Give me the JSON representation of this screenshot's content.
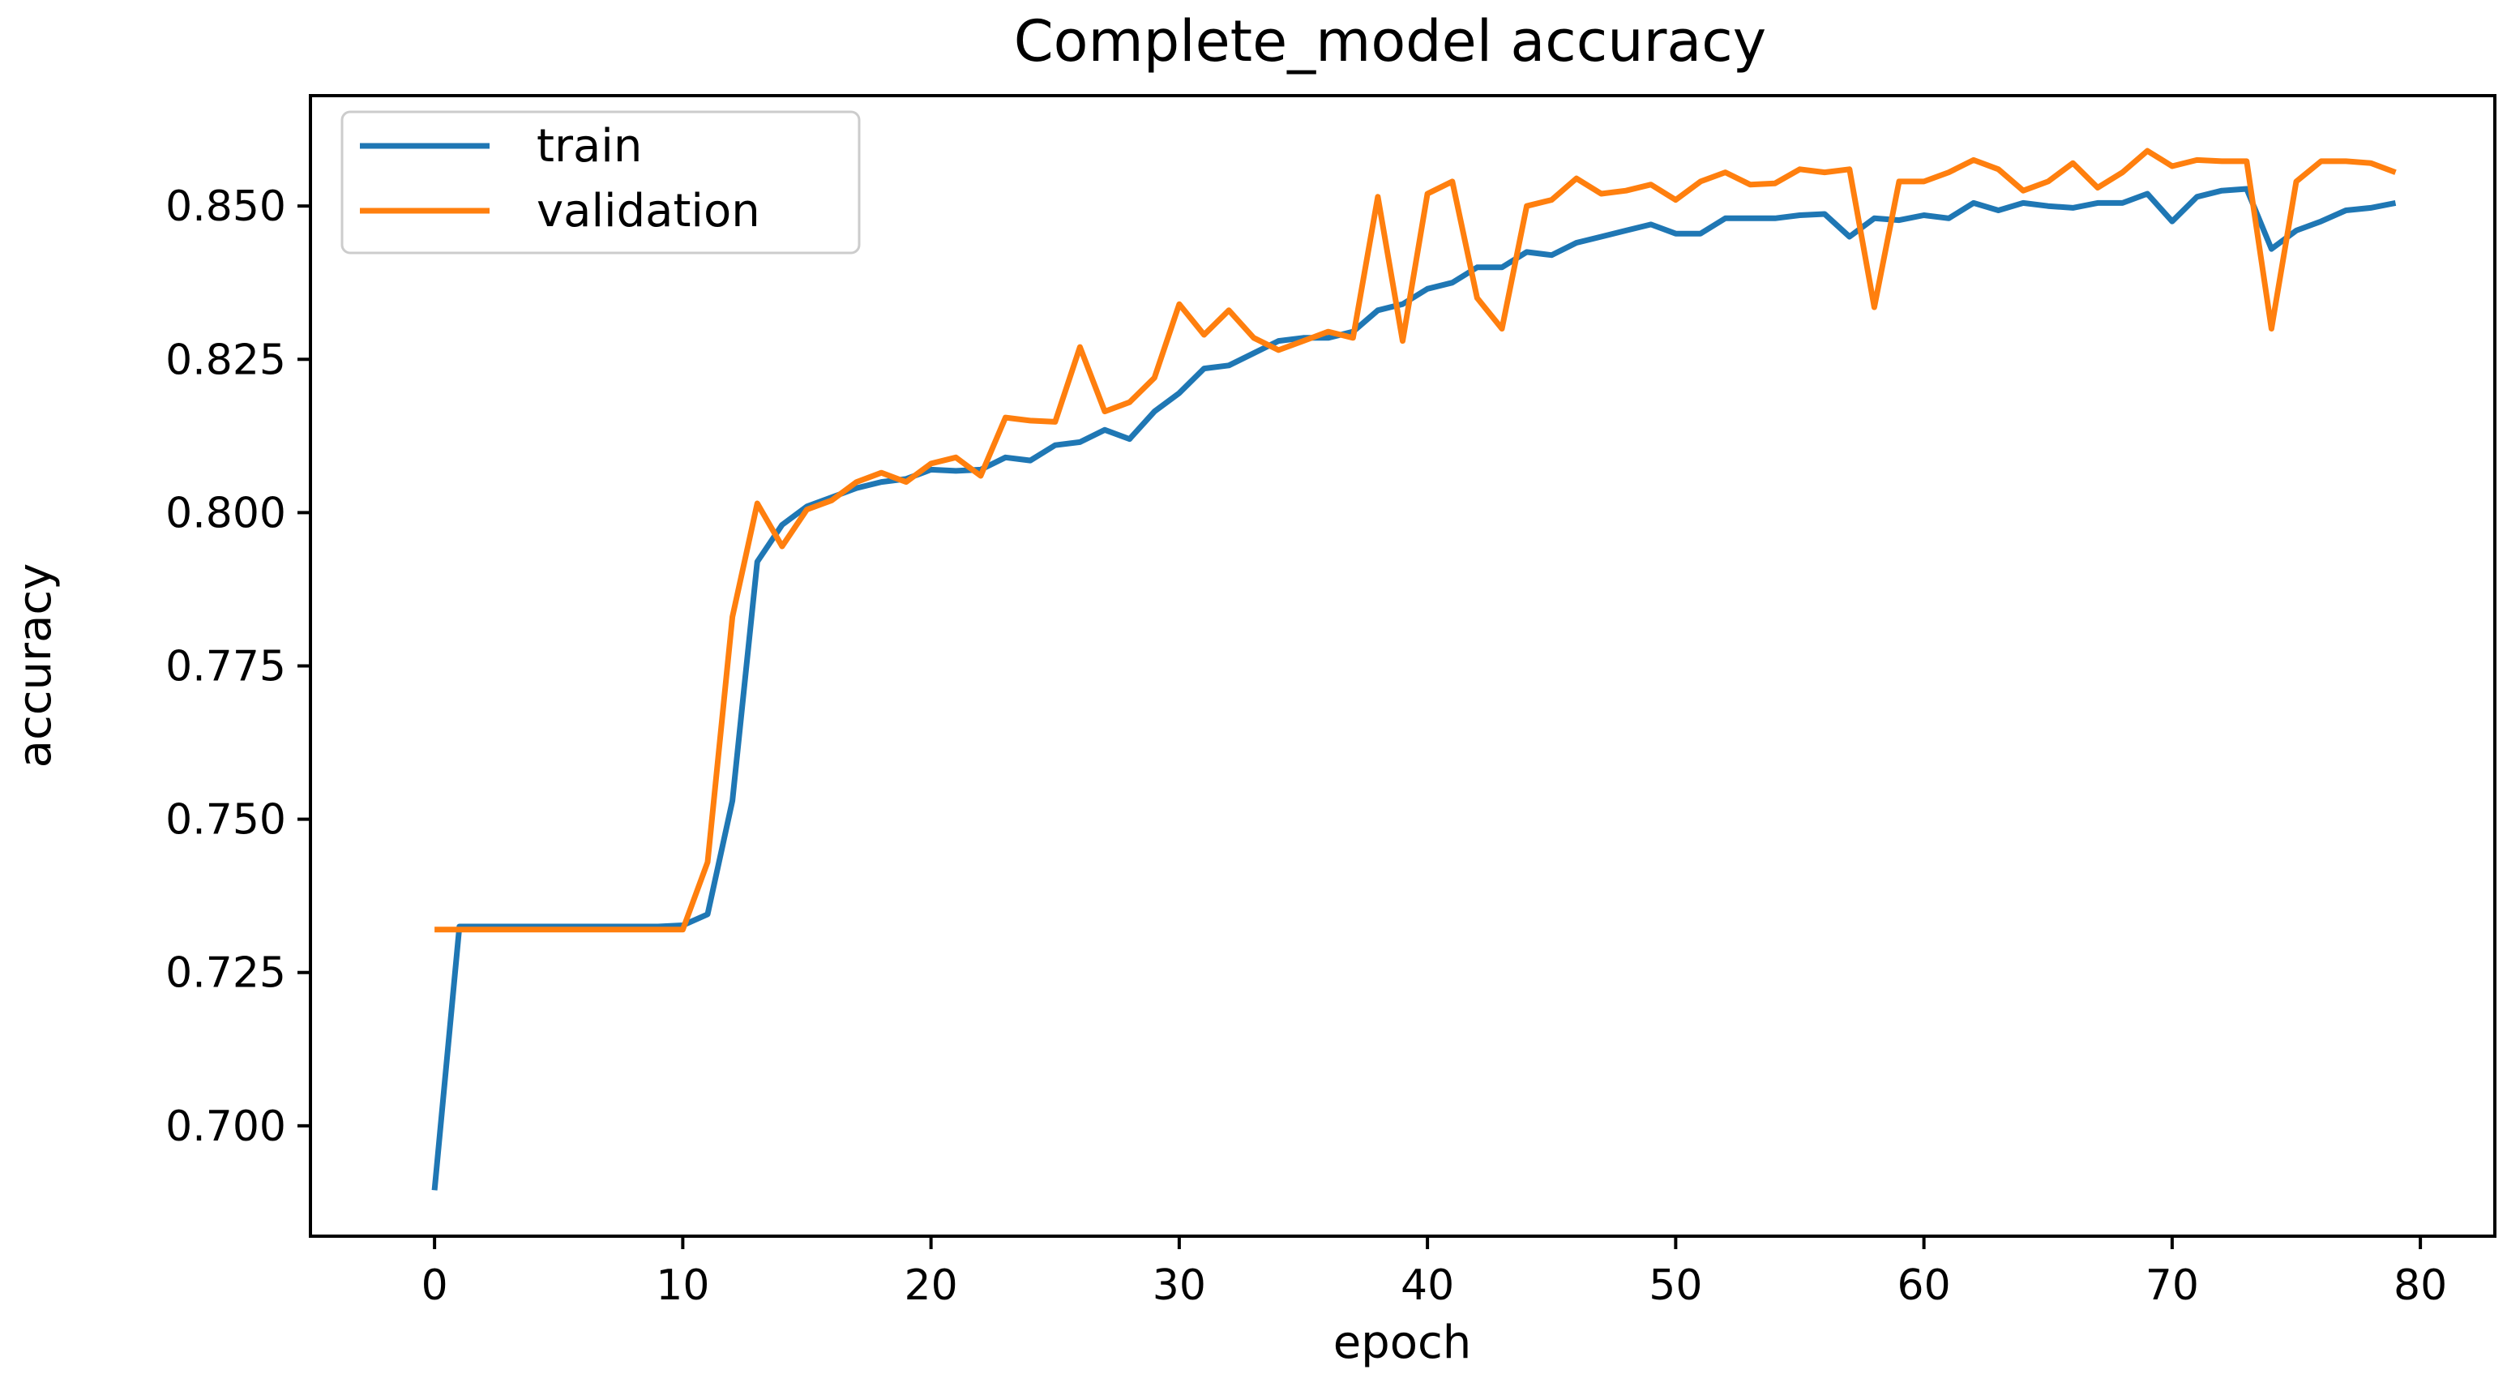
{
  "chart_data": {
    "type": "line",
    "title": "Complete_model accuracy",
    "xlabel": "epoch",
    "ylabel": "accuracy",
    "xlim": [
      -5,
      83
    ],
    "ylim": [
      0.682,
      0.868
    ],
    "x_ticks": [
      0,
      10,
      20,
      30,
      40,
      50,
      60,
      70,
      80
    ],
    "y_ticks": [
      0.7,
      0.725,
      0.75,
      0.775,
      0.8,
      0.825,
      0.85
    ],
    "x_tick_labels": [
      "0",
      "10",
      "20",
      "30",
      "40",
      "50",
      "60",
      "70",
      "80"
    ],
    "y_tick_labels": [
      "0.700",
      "0.725",
      "0.750",
      "0.775",
      "0.800",
      "0.825",
      "0.850"
    ],
    "grid": false,
    "legend_position": "top-left",
    "x": [
      0,
      1,
      2,
      3,
      4,
      5,
      6,
      7,
      8,
      9,
      10,
      11,
      12,
      13,
      14,
      15,
      16,
      17,
      18,
      19,
      20,
      21,
      22,
      23,
      24,
      25,
      26,
      27,
      28,
      29,
      30,
      31,
      32,
      33,
      34,
      35,
      36,
      37,
      38,
      39,
      40,
      41,
      42,
      43,
      44,
      45,
      46,
      47,
      48,
      49,
      50,
      51,
      52,
      53,
      54,
      55,
      56,
      57,
      58,
      59,
      60,
      61,
      62,
      63,
      64,
      65,
      66,
      67,
      68,
      69,
      70,
      71,
      72,
      73,
      74,
      75,
      76,
      77,
      78,
      79
    ],
    "series": [
      {
        "name": "train",
        "color": "#1f77b4",
        "values": [
          0.6895,
          0.7325,
          0.7325,
          0.7325,
          0.7325,
          0.7325,
          0.7325,
          0.7325,
          0.7325,
          0.7325,
          0.7327,
          0.7345,
          0.753,
          0.792,
          0.798,
          0.801,
          0.8025,
          0.804,
          0.805,
          0.8055,
          0.807,
          0.8068,
          0.807,
          0.809,
          0.8085,
          0.811,
          0.8115,
          0.8135,
          0.812,
          0.8165,
          0.8195,
          0.8235,
          0.824,
          0.826,
          0.828,
          0.8285,
          0.8285,
          0.8295,
          0.833,
          0.834,
          0.8365,
          0.8375,
          0.84,
          0.84,
          0.8425,
          0.842,
          0.844,
          0.845,
          0.846,
          0.847,
          0.8455,
          0.8455,
          0.848,
          0.848,
          0.848,
          0.8485,
          0.8487,
          0.845,
          0.848,
          0.8477,
          0.8485,
          0.848,
          0.8505,
          0.8493,
          0.8505,
          0.85,
          0.8497,
          0.8505,
          0.8505,
          0.852,
          0.8475,
          0.8515,
          0.8525,
          0.8528,
          0.843,
          0.846,
          0.8475,
          0.8493,
          0.8497,
          0.8505
        ]
      },
      {
        "name": "validation",
        "color": "#ff7f0e",
        "values": [
          0.732,
          0.732,
          0.732,
          0.732,
          0.732,
          0.732,
          0.732,
          0.732,
          0.732,
          0.732,
          0.732,
          0.743,
          0.783,
          0.8015,
          0.7945,
          0.8005,
          0.802,
          0.805,
          0.8065,
          0.805,
          0.808,
          0.809,
          0.806,
          0.8155,
          0.815,
          0.8148,
          0.827,
          0.8165,
          0.818,
          0.822,
          0.834,
          0.829,
          0.833,
          0.8285,
          0.8265,
          0.828,
          0.8295,
          0.8285,
          0.8515,
          0.828,
          0.852,
          0.854,
          0.835,
          0.83,
          0.85,
          0.851,
          0.8545,
          0.852,
          0.8525,
          0.8535,
          0.851,
          0.854,
          0.8555,
          0.8535,
          0.8537,
          0.856,
          0.8555,
          0.856,
          0.8335,
          0.854,
          0.854,
          0.8555,
          0.8575,
          0.856,
          0.8525,
          0.854,
          0.857,
          0.853,
          0.8555,
          0.859,
          0.8565,
          0.8575,
          0.8573,
          0.8573,
          0.83,
          0.854,
          0.8573,
          0.8573,
          0.857,
          0.8555
        ]
      }
    ]
  }
}
